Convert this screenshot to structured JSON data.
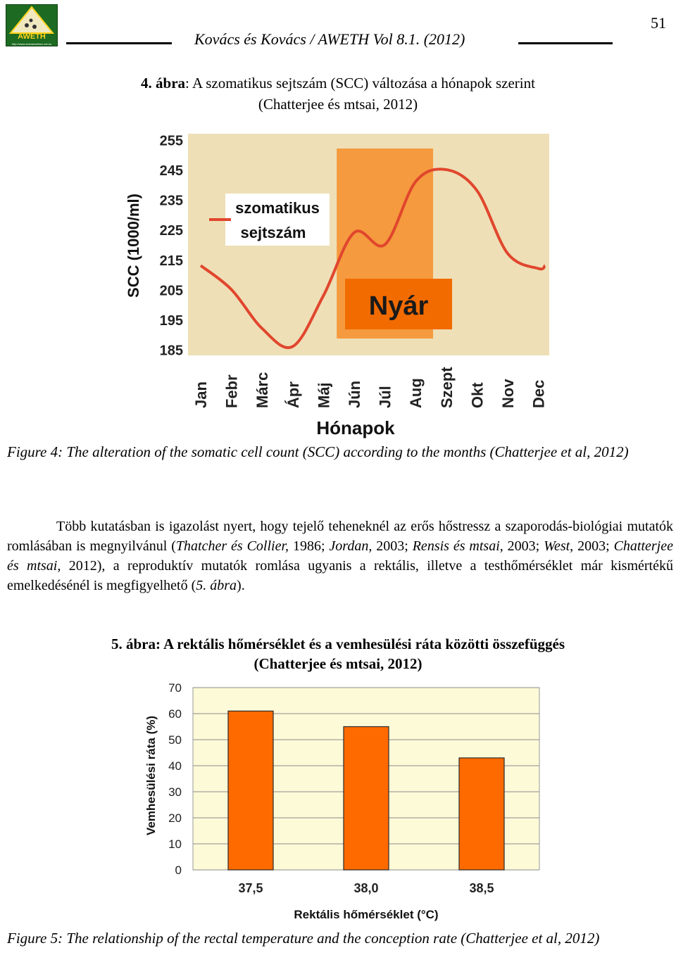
{
  "header": {
    "logo_text": "AWETH",
    "logo_url": "http://www.animalwelfare.net.hu",
    "journal": "Kovács és Kovács / AWETH Vol 8.1. (2012)",
    "page_number": "51"
  },
  "figure4": {
    "caption_number": "4. ábra",
    "caption_title": ": A szomatikus sejtszám (SCC) változása a hónapok szerint",
    "caption_source": "(Chatterjee és mtsai, 2012)",
    "english_caption": "Figure 4: The alteration of the somatic cell count (SCC) according to the months (Chatterjee et al, 2012)"
  },
  "paragraph": {
    "p1": "Több kutatásban is igazolást nyert, hogy tejelő teheneknél az erős hőstressz a szaporodás-biológiai mutatók romlásában is megnyilvánul (",
    "c1": "Thatcher és Collier,",
    "p2": " 1986; ",
    "c2": "Jordan,",
    "p3": " 2003; ",
    "c3": "Rensis és mtsai,",
    "p4": " 2003; ",
    "c4": "West,",
    "p5": " 2003; ",
    "c5": "Chatterjee és mtsai,",
    "p6": " 2012), a reproduktív mutatók romlása ugyanis a rektális, illetve a testhőmérséklet már kismértékű emelkedésénél is megfigyelhető (",
    "c6": "5. ábra",
    "p7": ")."
  },
  "figure5": {
    "caption_number": "5. ábra",
    "caption_title": ": A rektális hőmérséklet és a vemhesülési ráta közötti összefüggés",
    "caption_source": "(Chatterjee és mtsai, 2012)",
    "english_caption": "Figure 5: The relationship of the rectal temperature and the conception rate (Chatterjee et al, 2012)"
  },
  "chart_data": [
    {
      "type": "line",
      "ylabel": "SCC (1000/ml)",
      "xlabel": "Hónapok",
      "yticks": [
        185,
        195,
        205,
        215,
        225,
        235,
        245,
        255
      ],
      "ylim": [
        183,
        257
      ],
      "categories": [
        "Jan",
        "Febr",
        "Márc",
        "Ápr",
        "Máj",
        "Jún",
        "Júl",
        "Aug",
        "Szept",
        "Okt",
        "Nov",
        "Dec"
      ],
      "values": [
        213,
        205,
        192,
        186,
        203,
        224,
        220,
        241,
        245,
        238,
        217,
        212
      ],
      "end_value": 213,
      "legend": "szomatikus sejtszám",
      "annotation": "Nyár",
      "highlight_months": [
        "Jún",
        "Júl",
        "Aug"
      ],
      "colors": {
        "line": "#e1462d",
        "background": "#eedfb6",
        "highlight": "#f59a3e",
        "annotation_box": "#f26b00"
      },
      "grid": false
    },
    {
      "type": "bar",
      "ylabel": "Vemhesülési ráta (%)",
      "xlabel": "Rektális hőmérséklet (°C)",
      "categories": [
        "37,5",
        "38,0",
        "38,5"
      ],
      "values": [
        61,
        55,
        43
      ],
      "yticks": [
        0,
        10,
        20,
        30,
        40,
        50,
        60,
        70
      ],
      "ylim": [
        0,
        70
      ],
      "colors": {
        "bar": "#ff6a00",
        "plot_background": "#fdfad8"
      },
      "grid": true
    }
  ]
}
